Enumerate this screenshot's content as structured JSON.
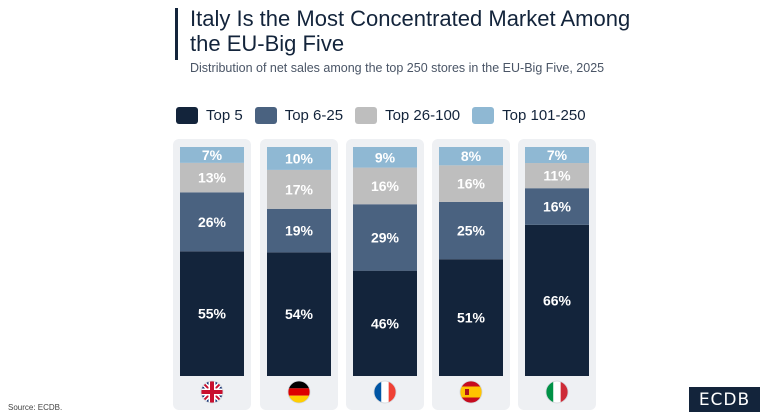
{
  "header": {
    "title": "Italy Is the Most Concentrated Market Among the EU-Big Five",
    "subtitle": "Distribution of net sales among the top 250 stores in the EU-Big Five, 2025"
  },
  "colors": {
    "top5": "#13243b",
    "top6_25": "#4a6280",
    "top26_100": "#bebebe",
    "top101_250": "#8fb8d3",
    "panel": "#eef0f3"
  },
  "chart_data": {
    "type": "bar",
    "stacked": true,
    "categories": [
      "United Kingdom",
      "Germany",
      "France",
      "Spain",
      "Italy"
    ],
    "category_icons": [
      "uk-flag-icon",
      "germany-flag-icon",
      "france-flag-icon",
      "spain-flag-icon",
      "italy-flag-icon"
    ],
    "series": [
      {
        "name": "Top 5",
        "color": "#13243b",
        "values": [
          55,
          54,
          46,
          51,
          66
        ],
        "labels": [
          "55%",
          "54%",
          "46%",
          "51%",
          "66%"
        ]
      },
      {
        "name": "Top 6-25",
        "color": "#4a6280",
        "values": [
          26,
          19,
          29,
          25,
          16
        ],
        "labels": [
          "26%",
          "19%",
          "29%",
          "25%",
          "16%"
        ]
      },
      {
        "name": "Top 26-100",
        "color": "#bebebe",
        "values": [
          13,
          17,
          16,
          16,
          11
        ],
        "labels": [
          "13%",
          "17%",
          "16%",
          "16%",
          "11%"
        ]
      },
      {
        "name": "Top 101-250",
        "color": "#8fb8d3",
        "values": [
          7,
          10,
          9,
          8,
          7
        ],
        "labels": [
          "7%",
          "10%",
          "9%",
          "8%",
          "7%"
        ]
      }
    ],
    "ylim": [
      0,
      100
    ],
    "legend_position": "top"
  },
  "footer": {
    "source": "Source: ECDB.",
    "logo": "ECDB"
  }
}
